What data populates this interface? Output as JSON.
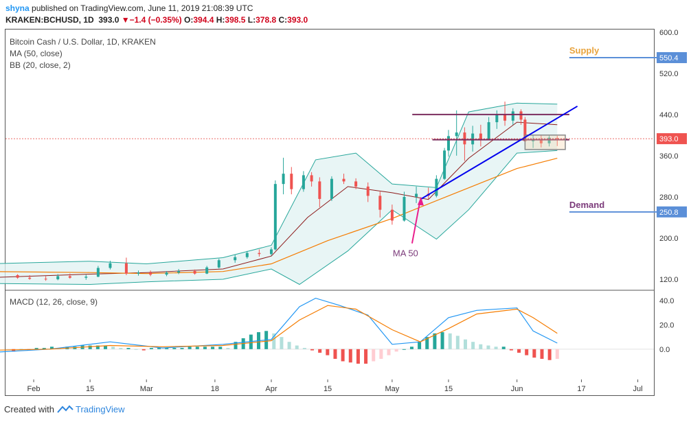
{
  "header": {
    "author": "shyna",
    "published": "published on TradingView.com, June 11, 2019 21:08:39 UTC",
    "symbol": "KRAKEN:BCHUSD, 1D",
    "last": "393.0",
    "change_arrow": "▼",
    "change": "−1.4 (−0.35%)",
    "o_label": "O:",
    "o": "394.4",
    "h_label": "H:",
    "h": "398.5",
    "l_label": "L:",
    "l": "378.8",
    "c_label": "C:",
    "c": "393.0"
  },
  "indicators": {
    "title": "Bitcoin Cash / U.S. Dollar, 1D, KRAKEN",
    "ma": "MA (50, close)",
    "bb": "BB (20, close, 2)",
    "macd": "MACD (12, 26, close, 9)"
  },
  "footer": {
    "created_with": "Created with",
    "brand": "TradingView"
  },
  "colors": {
    "up": "#26a69a",
    "down": "#ef5350",
    "ma": "#f57c00",
    "bb_mid": "#8d1b1b",
    "bb_band": "#26a69a",
    "bb_fill": "#e0f2f1",
    "macd": "#2196f3",
    "signal": "#f57c00",
    "trend": "#0000ee",
    "resistance": "#7b2d5e",
    "supply": "#e8a33d",
    "demand": "#7b3a7a",
    "arrow": "#e91e8c",
    "price_line": "#e53935"
  },
  "chart_data": [
    {
      "type": "candlestick",
      "title": "Bitcoin Cash / U.S. Dollar, 1D, KRAKEN",
      "ylim": [
        100,
        605
      ],
      "y_ticks": [
        {
          "value": 120,
          "label": "120.0"
        },
        {
          "value": 200,
          "label": "200.0"
        },
        {
          "value": 280,
          "label": "280.0"
        },
        {
          "value": 360,
          "label": "360.0"
        },
        {
          "value": 440,
          "label": "440.0"
        },
        {
          "value": 520,
          "label": "520.0"
        },
        {
          "value": 600,
          "label": "600.0"
        }
      ],
      "x_ticks": [
        {
          "date": "2019-02-01",
          "label": "Feb"
        },
        {
          "date": "2019-02-15",
          "label": "15"
        },
        {
          "date": "2019-03-01",
          "label": "Mar"
        },
        {
          "date": "2019-03-18",
          "label": "18"
        },
        {
          "date": "2019-04-01",
          "label": "Apr"
        },
        {
          "date": "2019-04-15",
          "label": "15"
        },
        {
          "date": "2019-05-01",
          "label": "May"
        },
        {
          "date": "2019-05-15",
          "label": "15"
        },
        {
          "date": "2019-06-01",
          "label": "Jun"
        },
        {
          "date": "2019-06-17",
          "label": "17"
        },
        {
          "date": "2019-07-01",
          "label": "Jul"
        }
      ],
      "candles": [
        {
          "date": "2019-01-28",
          "o": 128,
          "h": 130,
          "l": 121,
          "c": 123
        },
        {
          "date": "2019-01-31",
          "o": 123,
          "h": 128,
          "l": 119,
          "c": 121
        },
        {
          "date": "2019-02-04",
          "o": 121,
          "h": 126,
          "l": 117,
          "c": 120
        },
        {
          "date": "2019-02-07",
          "o": 120,
          "h": 130,
          "l": 118,
          "c": 126
        },
        {
          "date": "2019-02-10",
          "o": 126,
          "h": 131,
          "l": 121,
          "c": 123
        },
        {
          "date": "2019-02-14",
          "o": 123,
          "h": 129,
          "l": 119,
          "c": 125
        },
        {
          "date": "2019-02-17",
          "o": 125,
          "h": 146,
          "l": 124,
          "c": 142
        },
        {
          "date": "2019-02-20",
          "o": 142,
          "h": 156,
          "l": 139,
          "c": 151
        },
        {
          "date": "2019-02-24",
          "o": 151,
          "h": 162,
          "l": 128,
          "c": 131
        },
        {
          "date": "2019-02-27",
          "o": 131,
          "h": 137,
          "l": 127,
          "c": 133
        },
        {
          "date": "2019-03-02",
          "o": 133,
          "h": 137,
          "l": 126,
          "c": 129
        },
        {
          "date": "2019-03-06",
          "o": 129,
          "h": 136,
          "l": 126,
          "c": 133
        },
        {
          "date": "2019-03-09",
          "o": 133,
          "h": 140,
          "l": 130,
          "c": 136
        },
        {
          "date": "2019-03-13",
          "o": 136,
          "h": 139,
          "l": 129,
          "c": 131
        },
        {
          "date": "2019-03-16",
          "o": 131,
          "h": 146,
          "l": 130,
          "c": 143
        },
        {
          "date": "2019-03-19",
          "o": 143,
          "h": 160,
          "l": 141,
          "c": 157
        },
        {
          "date": "2019-03-23",
          "o": 157,
          "h": 168,
          "l": 152,
          "c": 163
        },
        {
          "date": "2019-03-26",
          "o": 163,
          "h": 175,
          "l": 160,
          "c": 171
        },
        {
          "date": "2019-03-29",
          "o": 171,
          "h": 178,
          "l": 164,
          "c": 169
        },
        {
          "date": "2019-04-01",
          "o": 169,
          "h": 182,
          "l": 166,
          "c": 178
        },
        {
          "date": "2019-04-02",
          "o": 178,
          "h": 312,
          "l": 176,
          "c": 305
        },
        {
          "date": "2019-04-04",
          "o": 305,
          "h": 356,
          "l": 285,
          "c": 325
        },
        {
          "date": "2019-04-06",
          "o": 325,
          "h": 338,
          "l": 285,
          "c": 295
        },
        {
          "date": "2019-04-09",
          "o": 295,
          "h": 330,
          "l": 290,
          "c": 322
        },
        {
          "date": "2019-04-11",
          "o": 322,
          "h": 328,
          "l": 300,
          "c": 310
        },
        {
          "date": "2019-04-13",
          "o": 310,
          "h": 318,
          "l": 260,
          "c": 276
        },
        {
          "date": "2019-04-16",
          "o": 276,
          "h": 320,
          "l": 272,
          "c": 315
        },
        {
          "date": "2019-04-19",
          "o": 315,
          "h": 325,
          "l": 305,
          "c": 310
        },
        {
          "date": "2019-04-22",
          "o": 310,
          "h": 316,
          "l": 295,
          "c": 300
        },
        {
          "date": "2019-04-25",
          "o": 300,
          "h": 308,
          "l": 270,
          "c": 282
        },
        {
          "date": "2019-04-28",
          "o": 282,
          "h": 290,
          "l": 240,
          "c": 255
        },
        {
          "date": "2019-05-01",
          "o": 255,
          "h": 265,
          "l": 226,
          "c": 234
        },
        {
          "date": "2019-05-04",
          "o": 234,
          "h": 290,
          "l": 232,
          "c": 280
        },
        {
          "date": "2019-05-07",
          "o": 280,
          "h": 300,
          "l": 268,
          "c": 286
        },
        {
          "date": "2019-05-10",
          "o": 286,
          "h": 298,
          "l": 276,
          "c": 282
        },
        {
          "date": "2019-05-12",
          "o": 282,
          "h": 322,
          "l": 279,
          "c": 315
        },
        {
          "date": "2019-05-14",
          "o": 315,
          "h": 375,
          "l": 313,
          "c": 370
        },
        {
          "date": "2019-05-15",
          "o": 370,
          "h": 410,
          "l": 358,
          "c": 398
        },
        {
          "date": "2019-05-17",
          "o": 398,
          "h": 448,
          "l": 360,
          "c": 405
        },
        {
          "date": "2019-05-19",
          "o": 405,
          "h": 415,
          "l": 350,
          "c": 382
        },
        {
          "date": "2019-05-21",
          "o": 382,
          "h": 418,
          "l": 368,
          "c": 403
        },
        {
          "date": "2019-05-23",
          "o": 403,
          "h": 420,
          "l": 378,
          "c": 392
        },
        {
          "date": "2019-05-25",
          "o": 392,
          "h": 435,
          "l": 390,
          "c": 425
        },
        {
          "date": "2019-05-27",
          "o": 425,
          "h": 448,
          "l": 412,
          "c": 440
        },
        {
          "date": "2019-05-29",
          "o": 440,
          "h": 465,
          "l": 418,
          "c": 428
        },
        {
          "date": "2019-05-31",
          "o": 428,
          "h": 452,
          "l": 420,
          "c": 446
        },
        {
          "date": "2019-06-02",
          "o": 446,
          "h": 450,
          "l": 420,
          "c": 430
        },
        {
          "date": "2019-06-03",
          "o": 430,
          "h": 435,
          "l": 380,
          "c": 388
        },
        {
          "date": "2019-06-05",
          "o": 388,
          "h": 400,
          "l": 375,
          "c": 392
        },
        {
          "date": "2019-06-07",
          "o": 392,
          "h": 400,
          "l": 376,
          "c": 384
        },
        {
          "date": "2019-06-09",
          "o": 384,
          "h": 399,
          "l": 378,
          "c": 395
        },
        {
          "date": "2019-06-11",
          "o": 394.4,
          "h": 398.5,
          "l": 378.8,
          "c": 393.0
        }
      ],
      "series": [
        {
          "name": "MA (50, close)",
          "x": [
            "2019-01-20",
            "2019-02-15",
            "2019-03-01",
            "2019-03-20",
            "2019-04-01",
            "2019-04-15",
            "2019-05-01",
            "2019-05-15",
            "2019-06-01",
            "2019-06-11"
          ],
          "values": [
            135,
            133,
            131,
            135,
            150,
            195,
            238,
            282,
            335,
            355
          ]
        },
        {
          "name": "BB (20, close, 2) basis",
          "x": [
            "2019-01-20",
            "2019-02-15",
            "2019-03-01",
            "2019-03-20",
            "2019-04-01",
            "2019-04-10",
            "2019-04-20",
            "2019-05-01",
            "2019-05-10",
            "2019-05-20",
            "2019-06-01",
            "2019-06-11"
          ],
          "values": [
            123,
            130,
            133,
            140,
            165,
            240,
            300,
            288,
            275,
            355,
            425,
            420
          ]
        },
        {
          "name": "BB (20, close, 2) upper",
          "x": [
            "2019-01-20",
            "2019-02-15",
            "2019-03-01",
            "2019-03-20",
            "2019-04-01",
            "2019-04-12",
            "2019-04-22",
            "2019-05-01",
            "2019-05-12",
            "2019-05-20",
            "2019-06-01",
            "2019-06-11"
          ],
          "values": [
            150,
            155,
            150,
            162,
            186,
            352,
            365,
            305,
            298,
            445,
            462,
            460
          ]
        },
        {
          "name": "BB (20, close, 2) lower",
          "x": [
            "2019-01-20",
            "2019-02-15",
            "2019-03-01",
            "2019-03-20",
            "2019-04-01",
            "2019-04-08",
            "2019-04-20",
            "2019-05-01",
            "2019-05-12",
            "2019-05-20",
            "2019-06-01",
            "2019-06-11"
          ],
          "values": [
            112,
            110,
            115,
            120,
            140,
            110,
            175,
            255,
            198,
            255,
            365,
            370
          ]
        }
      ],
      "price_line": {
        "value": 393.0,
        "label": "393.0"
      },
      "annotations": [
        {
          "text": "Supply",
          "value": 550.4,
          "label": "550.4",
          "start": "2019-06-14"
        },
        {
          "text": "Demand",
          "value": 250.8,
          "label": "250.8",
          "start": "2019-06-14"
        },
        {
          "text": "MA 50",
          "target_date": "2019-05-08",
          "target_value": 283
        }
      ],
      "trendline": {
        "from": {
          "date": "2019-05-08",
          "value": 275
        },
        "to": {
          "date": "2019-06-16",
          "value": 456
        }
      },
      "resistance_lines": [
        {
          "from": "2019-05-06",
          "to": "2019-06-14",
          "value": 440
        },
        {
          "from": "2019-05-11",
          "to": "2019-06-14",
          "value": 391
        }
      ],
      "range_box": {
        "from": "2019-06-03",
        "to": "2019-06-13",
        "top": 400,
        "bottom": 372
      }
    },
    {
      "type": "macd",
      "title": "MACD (12, 26, close, 9)",
      "ylim": [
        -25,
        48
      ],
      "y_ticks": [
        {
          "value": 0,
          "label": "0.0"
        },
        {
          "value": 20,
          "label": "20.0"
        },
        {
          "value": 40,
          "label": "40.0"
        }
      ],
      "macd": {
        "x": [
          "2019-01-20",
          "2019-02-05",
          "2019-02-20",
          "2019-03-05",
          "2019-03-20",
          "2019-04-01",
          "2019-04-08",
          "2019-04-12",
          "2019-04-18",
          "2019-04-25",
          "2019-05-01",
          "2019-05-08",
          "2019-05-15",
          "2019-05-22",
          "2019-06-01",
          "2019-06-05",
          "2019-06-11"
        ],
        "values": [
          -3,
          0,
          6,
          1,
          4,
          8,
          35,
          42,
          36,
          28,
          4,
          6,
          26,
          32,
          34,
          15,
          5
        ]
      },
      "signal": {
        "x": [
          "2019-01-20",
          "2019-02-05",
          "2019-02-20",
          "2019-03-05",
          "2019-03-20",
          "2019-04-01",
          "2019-04-08",
          "2019-04-15",
          "2019-04-22",
          "2019-05-01",
          "2019-05-08",
          "2019-05-15",
          "2019-05-22",
          "2019-06-01",
          "2019-06-05",
          "2019-06-11"
        ],
        "values": [
          -1,
          0,
          3,
          2,
          3,
          7,
          24,
          36,
          33,
          16,
          6,
          17,
          29,
          33,
          26,
          13
        ]
      },
      "histogram": [
        -2,
        0,
        -1,
        1,
        1,
        2,
        1,
        2,
        2,
        3,
        3,
        3,
        3,
        2,
        1,
        1,
        0,
        -1,
        1,
        1,
        1,
        1,
        1,
        2,
        2,
        2,
        2,
        2,
        1,
        6,
        9,
        12,
        14,
        15,
        13,
        10,
        6,
        3,
        1,
        -1,
        -3,
        -5,
        -8,
        -10,
        -11,
        -12,
        -12,
        -10,
        -8,
        -5,
        -2,
        0,
        2,
        6,
        10,
        13,
        14,
        13,
        11,
        8,
        6,
        4,
        3,
        2,
        2,
        -1,
        -3,
        -5,
        -7,
        -8,
        -9,
        -8
      ]
    }
  ]
}
